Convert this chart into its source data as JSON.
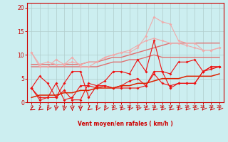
{
  "xlabel": "Vent moyen/en rafales ( km/h )",
  "xlim": [
    -0.5,
    23.5
  ],
  "ylim": [
    0,
    21
  ],
  "yticks": [
    0,
    5,
    10,
    15,
    20
  ],
  "xticks": [
    0,
    1,
    2,
    3,
    4,
    5,
    6,
    7,
    8,
    9,
    10,
    11,
    12,
    13,
    14,
    15,
    16,
    17,
    18,
    19,
    20,
    21,
    22,
    23
  ],
  "bg_color": "#cceef0",
  "grid_color": "#b0cccc",
  "line_light_pink": "#f0aaaa",
  "line_med_pink": "#e07070",
  "line_dark_red": "#ee1111",
  "line_trend_red": "#dd2200",
  "series_light1": [
    10.5,
    7.5,
    7.5,
    9.0,
    8.0,
    9.5,
    7.5,
    7.5,
    8.5,
    9.5,
    10.0,
    10.5,
    10.5,
    11.5,
    14.0,
    18.0,
    17.0,
    16.5,
    13.0,
    12.5,
    12.5,
    11.0,
    11.0,
    11.5
  ],
  "series_light2": [
    10.5,
    8.0,
    8.5,
    8.0,
    8.0,
    8.5,
    8.0,
    8.5,
    8.5,
    9.5,
    10.0,
    10.5,
    11.0,
    12.0,
    13.0,
    13.5,
    13.0,
    12.5,
    12.5,
    12.0,
    11.5,
    11.0,
    11.0,
    11.5
  ],
  "series_trend1": [
    8.0,
    8.0,
    8.0,
    8.0,
    8.0,
    8.0,
    8.0,
    8.5,
    8.5,
    9.0,
    9.5,
    9.5,
    10.0,
    10.5,
    11.0,
    11.5,
    12.0,
    12.5,
    12.5,
    12.5,
    12.5,
    12.5,
    12.5,
    12.5
  ],
  "series_trend2": [
    7.5,
    7.5,
    7.5,
    7.5,
    7.5,
    7.5,
    7.5,
    7.5,
    7.5,
    8.0,
    8.5,
    8.5,
    9.0,
    9.0,
    9.5,
    10.0,
    9.5,
    9.5,
    9.5,
    9.5,
    9.5,
    9.5,
    9.5,
    9.5
  ],
  "series_dark1": [
    3.0,
    5.5,
    4.0,
    1.0,
    4.0,
    6.5,
    6.5,
    1.0,
    3.5,
    4.5,
    6.5,
    6.5,
    6.0,
    9.0,
    6.5,
    13.0,
    6.5,
    6.0,
    8.5,
    8.5,
    9.0,
    6.5,
    7.5,
    7.5
  ],
  "series_dark2": [
    3.0,
    0.5,
    1.0,
    1.0,
    2.5,
    0.5,
    0.5,
    4.0,
    3.5,
    3.5,
    3.0,
    3.0,
    3.0,
    3.0,
    3.5,
    6.5,
    6.5,
    3.0,
    4.0,
    4.0,
    4.0,
    6.5,
    7.5,
    7.5
  ],
  "series_dark3": [
    3.0,
    1.0,
    1.0,
    4.0,
    0.5,
    1.0,
    3.5,
    3.5,
    3.0,
    3.5,
    3.0,
    3.5,
    4.5,
    5.0,
    3.5,
    6.0,
    4.0,
    3.5,
    4.0,
    4.0,
    4.0,
    6.5,
    7.0,
    7.5
  ],
  "series_trend3": [
    1.0,
    1.5,
    1.5,
    1.5,
    2.0,
    2.0,
    2.5,
    2.5,
    3.0,
    3.0,
    3.0,
    3.5,
    3.5,
    4.0,
    4.0,
    4.5,
    5.0,
    5.0,
    5.0,
    5.5,
    5.5,
    5.5,
    5.5,
    6.0
  ],
  "arrow_angles_deg": [
    225,
    220,
    200,
    185,
    185,
    180,
    180,
    215,
    200,
    200,
    210,
    210,
    200,
    200,
    215,
    215,
    210,
    215,
    205,
    210,
    210,
    205,
    210,
    205
  ]
}
